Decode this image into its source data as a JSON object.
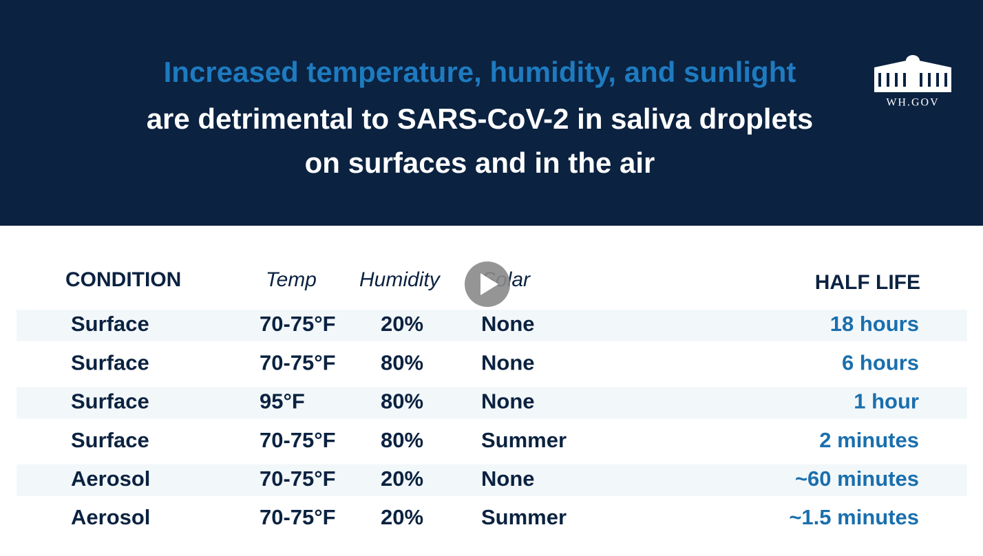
{
  "header": {
    "title_lines": [
      "Increased temperature, humidity, and sunlight",
      "are detrimental to SARS-CoV-2 in saliva droplets",
      "on surfaces and in the air"
    ],
    "logo_text": "WH.GOV"
  },
  "table": {
    "columns": [
      "CONDITION",
      "Temp",
      "Humidity",
      "Solar",
      "HALF LIFE"
    ],
    "rows": [
      [
        "Surface",
        "70-75°F",
        "20%",
        "None",
        "18 hours"
      ],
      [
        "Surface",
        "70-75°F",
        "80%",
        "None",
        "6 hours"
      ],
      [
        "Surface",
        "95°F",
        "80%",
        "None",
        "1 hour"
      ],
      [
        "Surface",
        "70-75°F",
        "80%",
        "Summer",
        "2 minutes"
      ],
      [
        "Aerosol",
        "70-75°F",
        "20%",
        "None",
        "~60 minutes"
      ],
      [
        "Aerosol",
        "70-75°F",
        "20%",
        "Summer",
        "~1.5 minutes"
      ]
    ]
  }
}
